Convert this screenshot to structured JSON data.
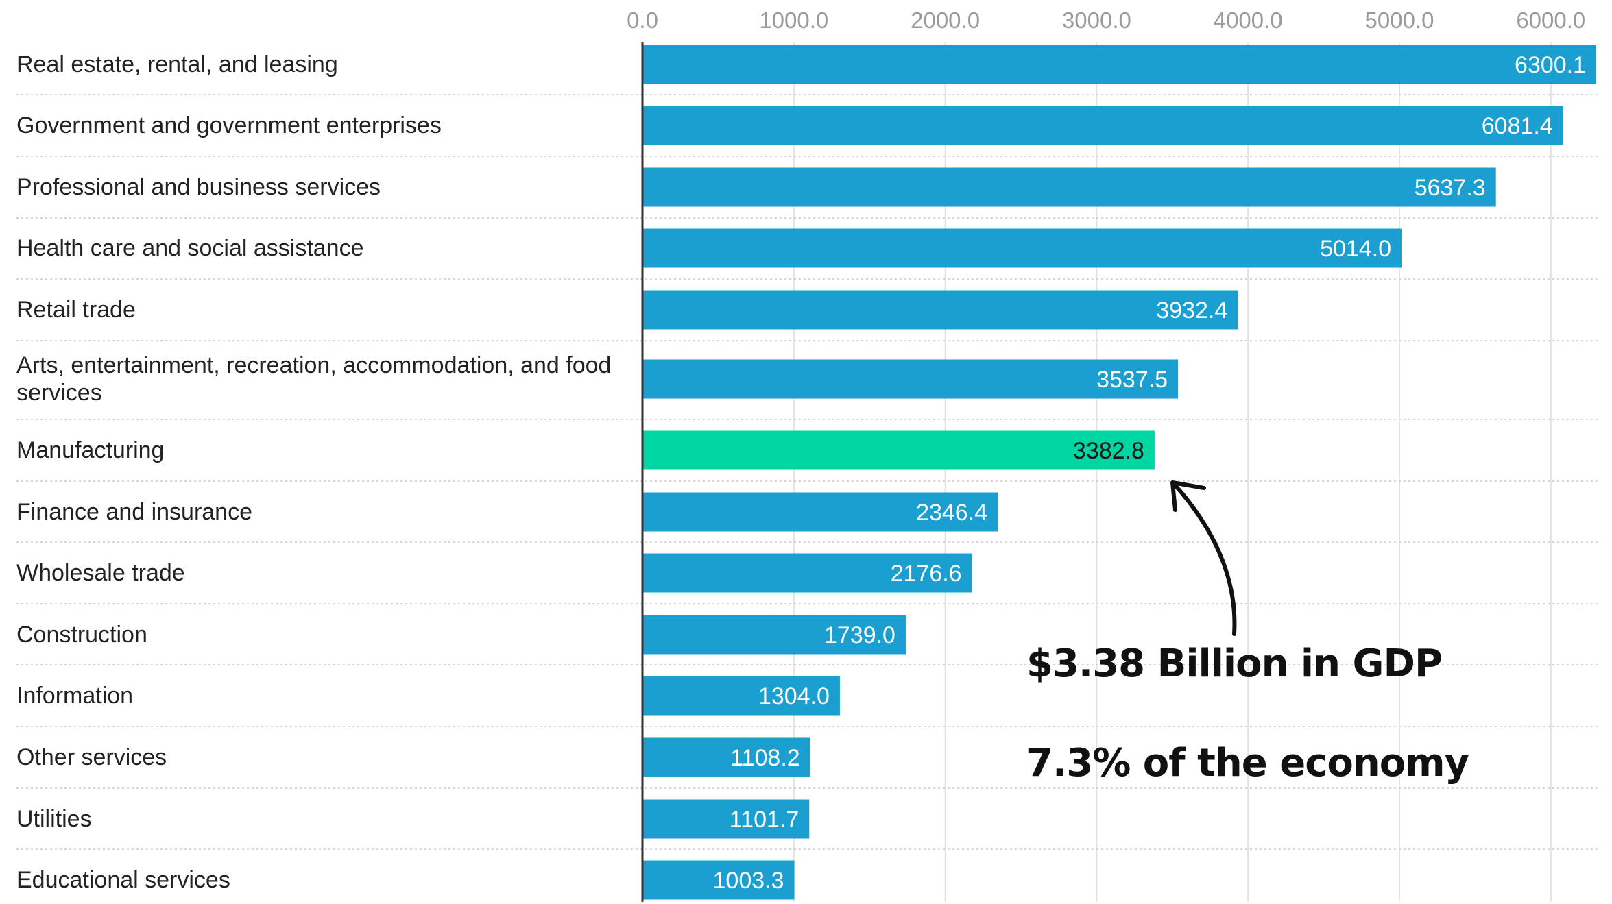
{
  "chart_data": {
    "type": "bar",
    "orientation": "horizontal",
    "categories": [
      "Real estate, rental, and leasing",
      "Government and government enterprises",
      "Professional and business services",
      "Health care and social assistance",
      "Retail trade",
      "Arts, entertainment, recreation, accommodation, and food services",
      "Manufacturing",
      "Finance and insurance",
      "Wholesale trade",
      "Construction",
      "Information",
      "Other services",
      "Utilities",
      "Educational services"
    ],
    "values": [
      6300.1,
      6081.4,
      5637.3,
      5014.0,
      3932.4,
      3537.5,
      3382.8,
      2346.4,
      2176.6,
      1739.0,
      1304.0,
      1108.2,
      1101.7,
      1003.3
    ],
    "value_labels": [
      "6300.1",
      "6081.4",
      "5637.3",
      "5014.0",
      "3932.4",
      "3537.5",
      "3382.8",
      "2346.4",
      "2176.6",
      "1739.0",
      "1304.0",
      "1108.2",
      "1101.7",
      "1003.3"
    ],
    "highlight_category": "Manufacturing",
    "x_ticks": [
      "0.0",
      "1000.0",
      "2000.0",
      "3000.0",
      "4000.0",
      "5000.0",
      "6000.0"
    ],
    "xlim": [
      0,
      6300
    ],
    "xaxis_position": "top",
    "grid": true,
    "colors": {
      "bar": "#1a9fd0",
      "highlight": "#00d6a1",
      "bar_label": "#ffffff",
      "highlight_label": "#1a1a1a",
      "tick_label": "#9a9a9a",
      "category_label": "#222222",
      "gridline": "#e2e2e2",
      "separator": "#c8c8c8",
      "axis": "#333333",
      "annotation": "#111111"
    }
  },
  "annotation": {
    "line1": "$3.38 Billion in GDP",
    "line2": "7.3% of the economy",
    "arrow_target": "Manufacturing"
  }
}
